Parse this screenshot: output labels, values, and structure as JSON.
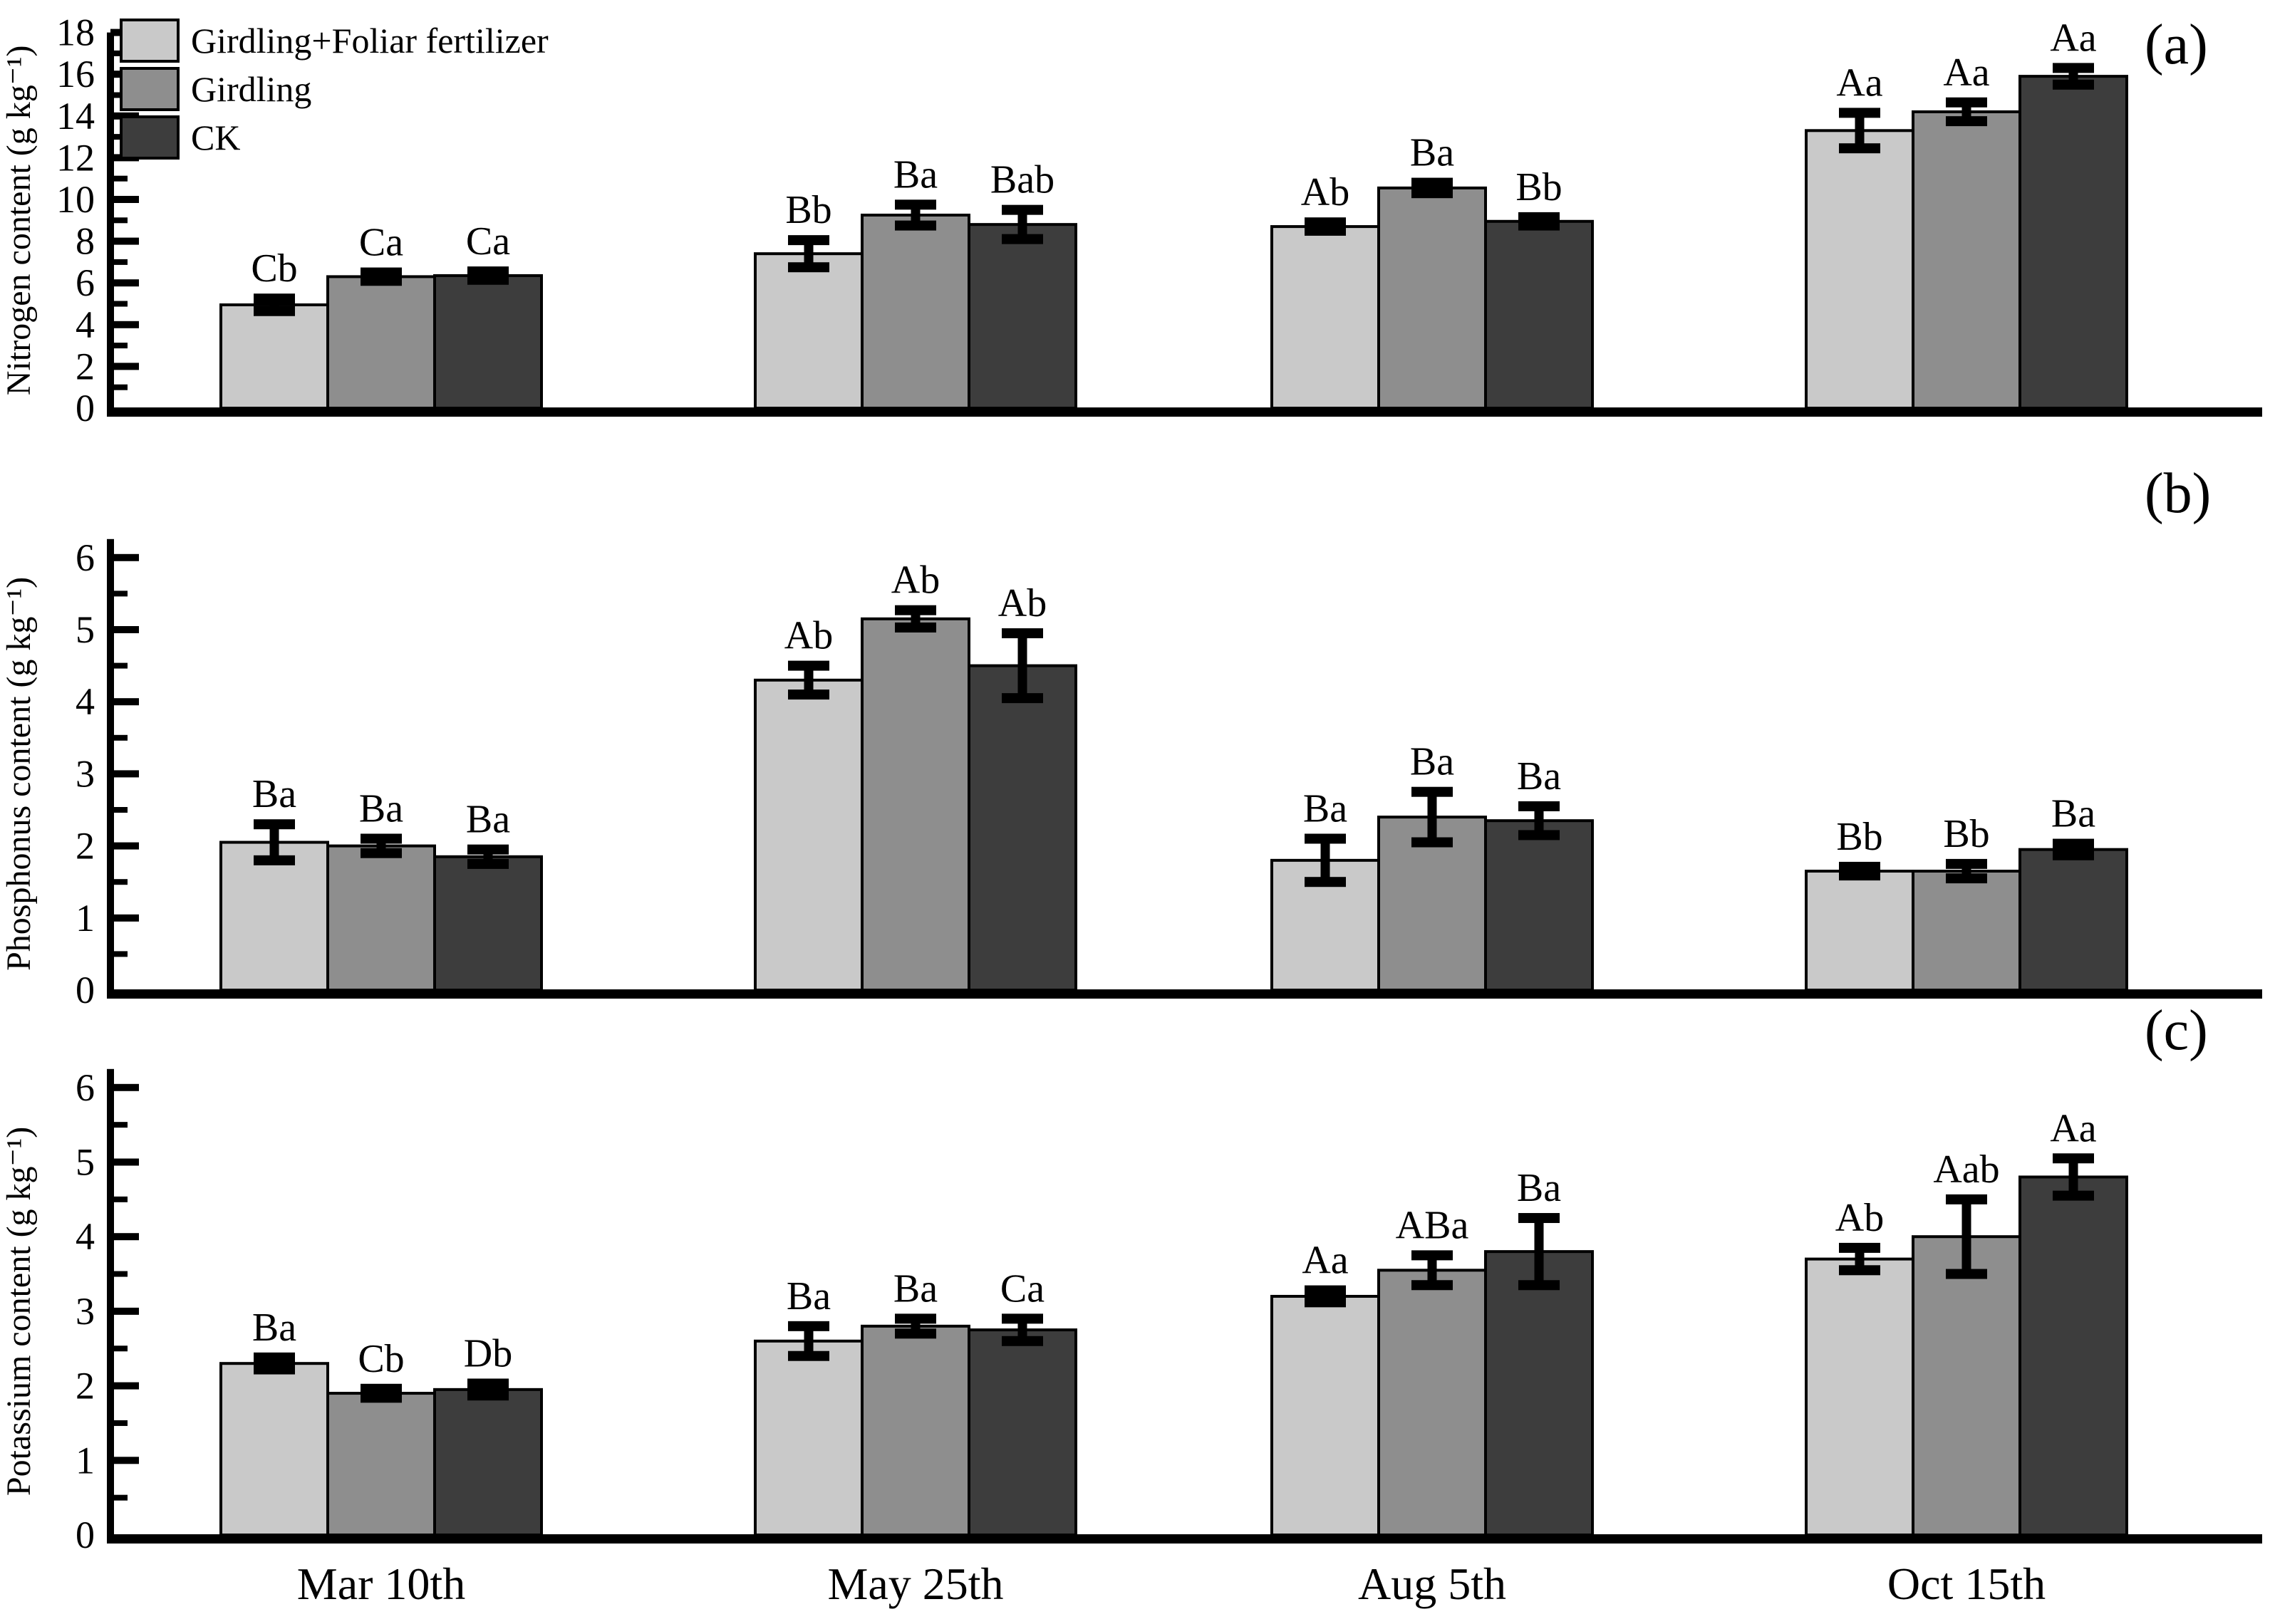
{
  "figure": {
    "background": "#ffffff",
    "ink_color": "#000000",
    "legend": {
      "items": [
        {
          "label": "Girdling+Foliar fertilizer",
          "color": "#c9c9c9"
        },
        {
          "label": "Girdling",
          "color": "#8e8e8e"
        },
        {
          "label": "CK",
          "color": "#3d3d3d"
        }
      ]
    },
    "categories": [
      "Mar 10th",
      "May 25th",
      "Aug 5th",
      "Oct 15th"
    ]
  },
  "chart_data": [
    {
      "type": "bar",
      "panel_label": "(a)",
      "title": "",
      "xlabel": "",
      "ylabel": "Nitrogen content (g kg⁻¹)",
      "ylim": [
        0,
        18
      ],
      "ytick_step": 2,
      "yminor_step": 1,
      "yticks": [
        0,
        2,
        4,
        6,
        8,
        10,
        12,
        14,
        16,
        18
      ],
      "grid": false,
      "legend_position": "top-left-inside",
      "error_bars": true,
      "categories": [
        "Mar 10th",
        "May 25th",
        "Aug 5th",
        "Oct 15th"
      ],
      "series": [
        {
          "name": "Girdling+Foliar fertilizer",
          "color": "#c9c9c9",
          "values": [
            4.95,
            7.4,
            8.7,
            13.3
          ],
          "errors": [
            0.3,
            0.65,
            0.2,
            0.85
          ],
          "sig_labels": [
            "Cb",
            "Bb",
            "Ab",
            "Aa"
          ]
        },
        {
          "name": "Girdling",
          "color": "#8e8e8e",
          "values": [
            6.3,
            9.25,
            10.55,
            14.2
          ],
          "errors": [
            0.2,
            0.5,
            0.25,
            0.45
          ],
          "sig_labels": [
            "Ca",
            "Ba",
            "Ba",
            "Aa"
          ]
        },
        {
          "name": "CK",
          "color": "#3d3d3d",
          "values": [
            6.35,
            8.8,
            8.95,
            15.9
          ],
          "errors": [
            0.2,
            0.7,
            0.2,
            0.4
          ],
          "sig_labels": [
            "Ca",
            "Bab",
            "Bb",
            "Aa"
          ]
        }
      ]
    },
    {
      "type": "bar",
      "panel_label": "(b)",
      "title": "",
      "xlabel": "",
      "ylabel": "Phosphonus content (g kg⁻¹)",
      "ylim": [
        0,
        6
      ],
      "ytick_step": 1,
      "yminor_step": 0.5,
      "yticks": [
        0,
        1,
        2,
        3,
        4,
        5,
        6
      ],
      "grid": false,
      "legend_position": "none",
      "error_bars": true,
      "categories": [
        "Mar 10th",
        "May 25th",
        "Aug 5th",
        "Oct 15th"
      ],
      "series": [
        {
          "name": "Girdling+Foliar fertilizer",
          "color": "#c9c9c9",
          "values": [
            2.05,
            4.3,
            1.8,
            1.65
          ],
          "errors": [
            0.25,
            0.2,
            0.3,
            0.06
          ],
          "sig_labels": [
            "Ba",
            "Ab",
            "Ba",
            "Bb"
          ]
        },
        {
          "name": "Girdling",
          "color": "#8e8e8e",
          "values": [
            2.0,
            5.15,
            2.4,
            1.65
          ],
          "errors": [
            0.1,
            0.12,
            0.35,
            0.1
          ],
          "sig_labels": [
            "Ba",
            "Ab",
            "Ba",
            "Bb"
          ]
        },
        {
          "name": "CK",
          "color": "#3d3d3d",
          "values": [
            1.85,
            4.5,
            2.35,
            1.95
          ],
          "errors": [
            0.1,
            0.45,
            0.2,
            0.08
          ],
          "sig_labels": [
            "Ba",
            "Ab",
            "Ba",
            "Ba"
          ]
        }
      ]
    },
    {
      "type": "bar",
      "panel_label": "(c)",
      "title": "",
      "xlabel": "",
      "ylabel": "Potassium content (g kg⁻¹)",
      "ylim": [
        0,
        6
      ],
      "ytick_step": 1,
      "yminor_step": 0.5,
      "yticks": [
        0,
        1,
        2,
        3,
        4,
        5,
        6
      ],
      "grid": false,
      "legend_position": "none",
      "error_bars": true,
      "categories": [
        "Mar 10th",
        "May 25th",
        "Aug 5th",
        "Oct 15th"
      ],
      "series": [
        {
          "name": "Girdling+Foliar fertilizer",
          "color": "#c9c9c9",
          "values": [
            2.3,
            2.6,
            3.2,
            3.7
          ],
          "errors": [
            0.08,
            0.2,
            0.08,
            0.15
          ],
          "sig_labels": [
            "Ba",
            "Ba",
            "Aa",
            "Ab"
          ]
        },
        {
          "name": "Girdling",
          "color": "#8e8e8e",
          "values": [
            1.9,
            2.8,
            3.55,
            4.0
          ],
          "errors": [
            0.06,
            0.1,
            0.2,
            0.5
          ],
          "sig_labels": [
            "Cb",
            "Ba",
            "ABa",
            "Aab"
          ]
        },
        {
          "name": "CK",
          "color": "#3d3d3d",
          "values": [
            1.95,
            2.75,
            3.8,
            4.8
          ],
          "errors": [
            0.08,
            0.15,
            0.45,
            0.25
          ],
          "sig_labels": [
            "Db",
            "Ca",
            "Ba",
            "Aa"
          ]
        }
      ]
    }
  ]
}
